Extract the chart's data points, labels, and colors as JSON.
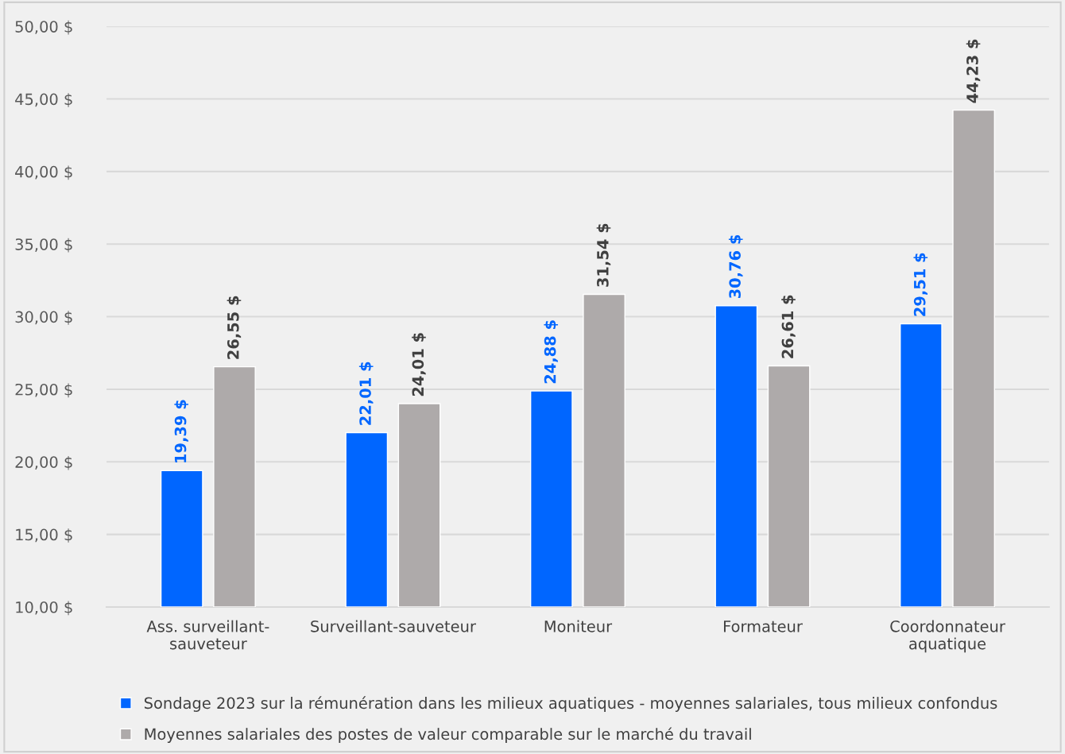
{
  "chart_data": {
    "type": "bar",
    "categories": [
      "Ass. surveillant-\nsauveteur",
      "Surveillant-sauveteur",
      "Moniteur",
      "Formateur",
      "Coordonnateur\naquatique"
    ],
    "series": [
      {
        "name": "Sondage 2023 sur la rémunération dans les milieux aquatiques - moyennes salariales, tous milieux confondus",
        "color": "#0066ff",
        "values": [
          19.39,
          22.01,
          24.88,
          30.76,
          29.51
        ],
        "value_labels": [
          "19,39 $",
          "22,01 $",
          "24,88 $",
          "30,76 $",
          "29,51 $"
        ]
      },
      {
        "name": "Moyennes salariales des postes de valeur comparable sur le marché du travail",
        "color": "#aeaaaa",
        "values": [
          26.55,
          24.01,
          31.54,
          26.61,
          44.23
        ],
        "value_labels": [
          "26,55 $",
          "24,01 $",
          "31,54 $",
          "26,61 $",
          "44,23 $"
        ]
      }
    ],
    "ylim": [
      10,
      50
    ],
    "yticks": [
      {
        "value": 10,
        "label": "10,00 $"
      },
      {
        "value": 15,
        "label": "15,00 $"
      },
      {
        "value": 20,
        "label": "20,00 $"
      },
      {
        "value": 25,
        "label": "25,00 $"
      },
      {
        "value": 30,
        "label": "30,00 $"
      },
      {
        "value": 35,
        "label": "35,00 $"
      },
      {
        "value": 40,
        "label": "40,00 $"
      },
      {
        "value": 45,
        "label": "45,00 $"
      },
      {
        "value": 50,
        "label": "50,00 $"
      }
    ],
    "grid": "y",
    "legend": "bottom"
  }
}
